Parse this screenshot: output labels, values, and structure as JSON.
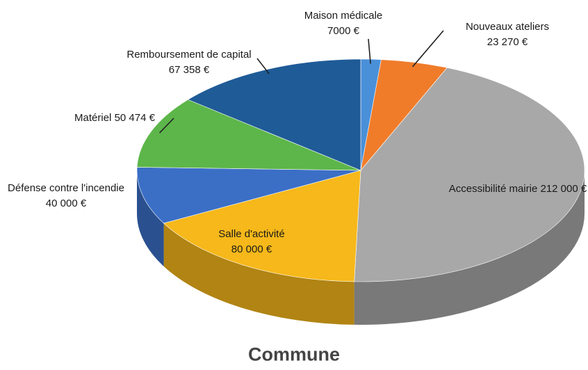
{
  "chart_data": {
    "type": "pie3d",
    "title": "Commune",
    "categories": [
      "Maison médicale",
      "Nouveaux ateliers",
      "Accessibilité mairie",
      "Salle d'activité",
      "Défense contre l'incendie",
      "Matériel",
      "Remboursement de capital"
    ],
    "values": [
      7000,
      23270,
      212000,
      80000,
      40000,
      50474,
      67358
    ],
    "value_labels": [
      "7000 €",
      "23 270 €",
      "212 000 €",
      "80 000 €",
      "40 000 €",
      "50 474 €",
      "67 358 €"
    ],
    "colors": [
      "#4a90d9",
      "#f07c2a",
      "#a8a8a8",
      "#f6b81a",
      "#3b6fc6",
      "#5db64a",
      "#1f5b97"
    ]
  }
}
